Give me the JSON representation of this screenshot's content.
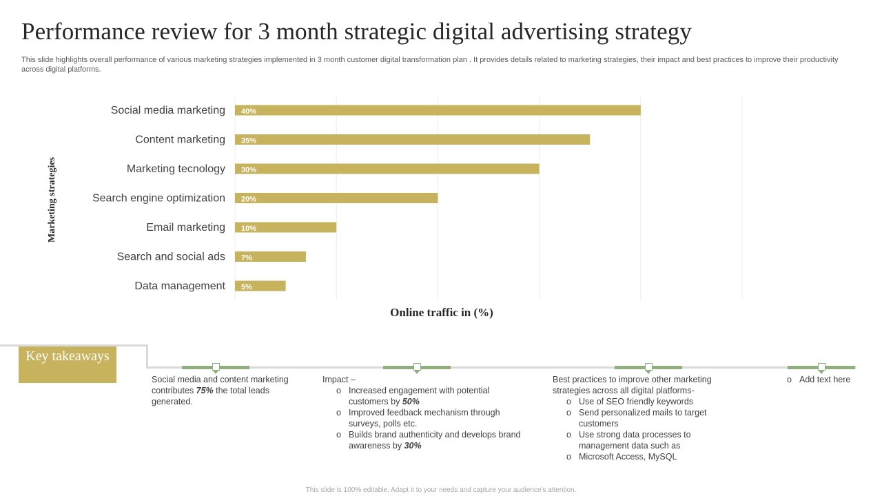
{
  "slide": {
    "title": "Performance review for 3 month strategic digital advertising strategy",
    "subtitle": "This slide highlights overall performance of various marketing strategies implemented in 3 month customer digital transformation plan . It provides details related to marketing strategies, their impact and best practices to improve their productivity across digital platforms.",
    "footer": "This slide is 100% editable. Adapt it to your needs and capture your audience's attention."
  },
  "chart_data": {
    "type": "bar",
    "orientation": "horizontal",
    "categories": [
      "Social media marketing",
      "Content marketing",
      "Marketing tecnology",
      "Search engine optimization",
      "Email marketing",
      "Search and social ads",
      "Data management"
    ],
    "values": [
      40,
      35,
      30,
      20,
      10,
      7,
      5
    ],
    "data_labels": [
      "40%",
      "35%",
      "30%",
      "20%",
      "10%",
      "7%",
      "5%"
    ],
    "xlabel": "Online traffic in (%)",
    "ylabel": "Marketing strategies",
    "xlim": [
      0,
      50
    ],
    "grid": "vertical",
    "bar_color": "#c7b35e"
  },
  "takeaways": {
    "key_label": "Key takeaways",
    "col1": {
      "text_a": "Social media and content marketing contributes ",
      "emph": "75%",
      "text_b": " the total leads generated."
    },
    "col2": {
      "heading": "Impact –",
      "items": [
        {
          "text": "Increased engagement with potential customers by ",
          "emph": "50%"
        },
        {
          "text": "Improved feedback mechanism through surveys, polls etc.",
          "emph": ""
        },
        {
          "text": "Builds brand authenticity  and develops brand awareness by ",
          "emph": "30%"
        }
      ]
    },
    "col3": {
      "heading": "Best practices to improve other marketing strategies across all digital platforms-",
      "items": [
        "Use of SEO friendly keywords",
        "Send personalized mails to target customers",
        "Use strong data processes to management data such as",
        "Microsoft Access, MySQL"
      ]
    },
    "col4": {
      "item": "Add text here"
    },
    "bullet_symbol": "o"
  }
}
